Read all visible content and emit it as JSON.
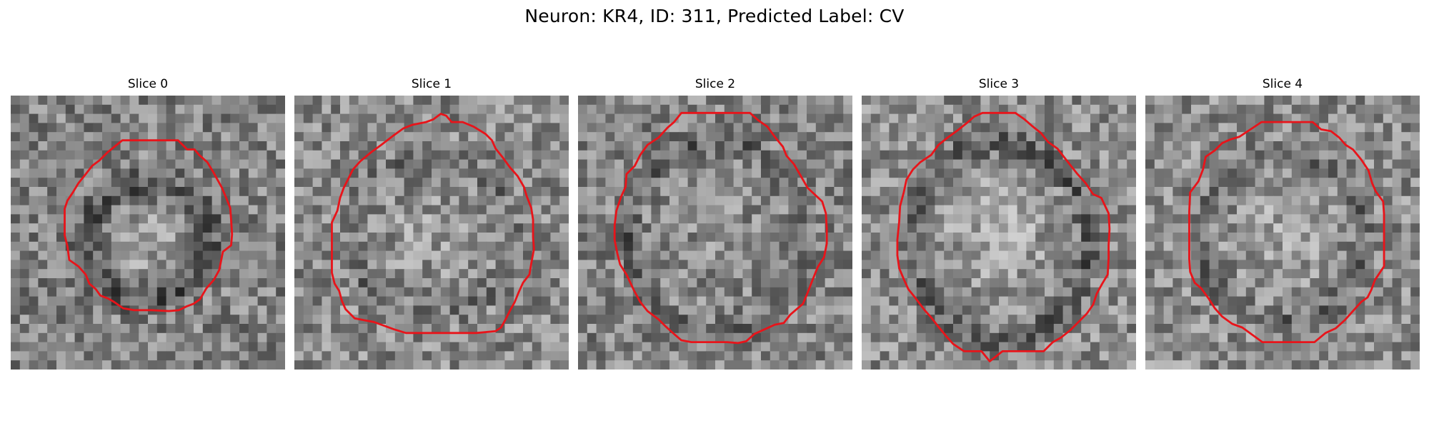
{
  "title": "Neuron: KR4, ID: 311, Predicted Label: CV",
  "contour_color": "#e8141a",
  "panels": [
    {
      "title": "Slice 0"
    },
    {
      "title": "Slice 1"
    },
    {
      "title": "Slice 2"
    },
    {
      "title": "Slice 3"
    },
    {
      "title": "Slice 4"
    }
  ]
}
